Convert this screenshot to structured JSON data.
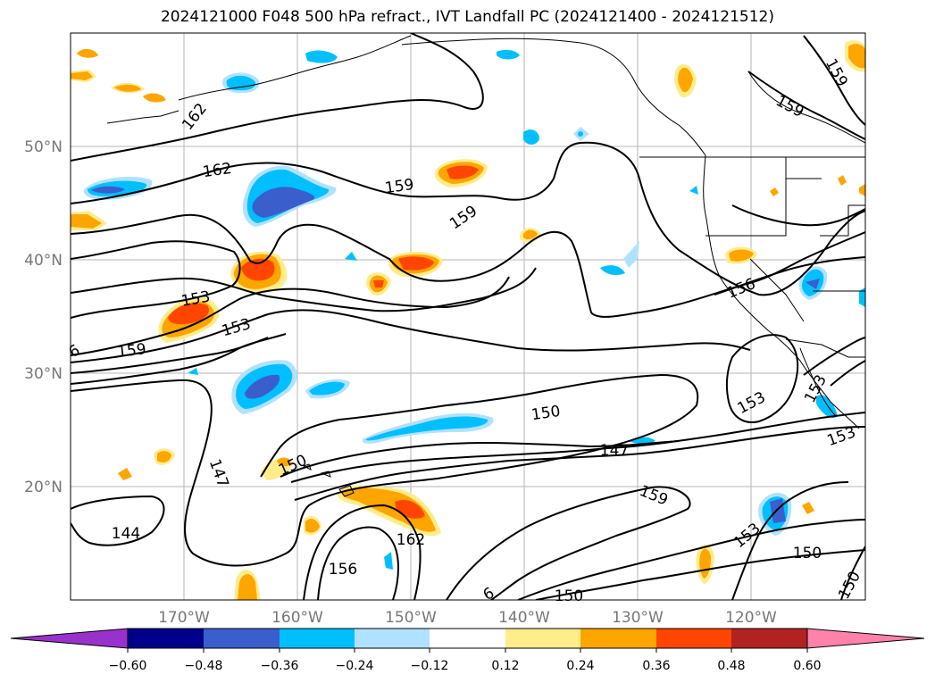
{
  "title": "2024121000 F048 500 hPa refract., IVT Landfall PC (2024121400 - 2024121512)",
  "latitude_labels": [
    "50°N",
    "40°N",
    "30°N",
    "20°N"
  ],
  "longitude_labels": [
    "170°W",
    "160°W",
    "150°W",
    "140°W",
    "130°W",
    "120°W"
  ],
  "contour_labels": [
    {
      "text": "162"
    },
    {
      "text": "159"
    },
    {
      "text": "159"
    },
    {
      "text": "159"
    },
    {
      "text": "159"
    },
    {
      "text": "159"
    },
    {
      "text": "153"
    },
    {
      "text": "153"
    },
    {
      "text": "153"
    },
    {
      "text": "153"
    },
    {
      "text": "150"
    },
    {
      "text": "150"
    },
    {
      "text": "147"
    },
    {
      "text": "147"
    },
    {
      "text": "144"
    },
    {
      "text": "162"
    },
    {
      "text": "156"
    },
    {
      "text": "159"
    },
    {
      "text": "153"
    },
    {
      "text": "150"
    },
    {
      "text": "150"
    },
    {
      "text": "150"
    },
    {
      "text": "156"
    },
    {
      "text": "153"
    },
    {
      "text": "162"
    },
    {
      "text": "6"
    },
    {
      "text": "6"
    },
    {
      "text": "150"
    }
  ],
  "colorbar": {
    "ticks": [
      "−0.60",
      "−0.48",
      "−0.36",
      "−0.24",
      "−0.12",
      "0.12",
      "0.24",
      "0.36",
      "0.48",
      "0.60"
    ],
    "colors": {
      "under": "#9932cc",
      "bins": [
        "#00008b",
        "#3a5fcd",
        "#00bfff",
        "#b0e2ff",
        "#ffffff",
        "#ffec8b",
        "#ffa500",
        "#ff4500",
        "#b22222"
      ],
      "over": "#ff82ab"
    }
  },
  "map": {
    "lat_range": [
      10,
      60
    ],
    "lon_range": [
      -180,
      -110
    ],
    "grid": true,
    "variable": "IVT Landfall PC",
    "contour_field": "500 hPa refract."
  }
}
